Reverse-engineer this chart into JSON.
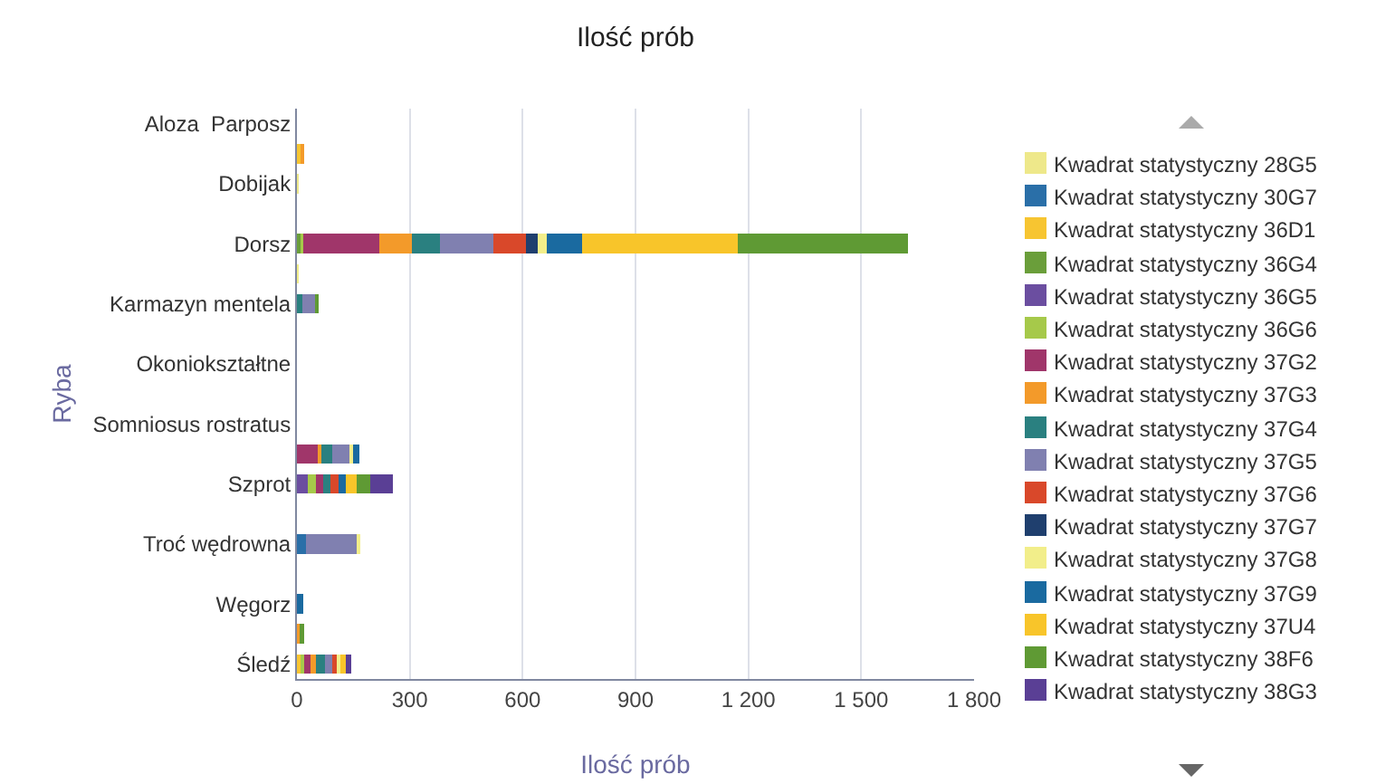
{
  "chart_data": {
    "type": "bar",
    "orientation": "horizontal",
    "stacked": true,
    "title": "Ilość prób",
    "xlabel": "Ilość prób",
    "ylabel": "Ryba",
    "categories": [
      "Aloza  Parposz",
      null,
      "Dobijak",
      null,
      "Dorsz",
      null,
      "Karmazyn mentela",
      null,
      "Okoniokształtne",
      null,
      "Somniosus rostratus",
      null,
      "Szprot",
      null,
      "Troć wędrowna",
      null,
      "Węgorz",
      null,
      "Śledź"
    ],
    "series": [
      {
        "name": "Kwadrat statystyczny 28G5",
        "color": "#eee88a",
        "values": [
          null,
          null,
          3,
          null,
          null,
          null,
          null,
          null,
          null,
          null,
          null,
          null,
          null,
          null,
          null,
          null,
          null,
          null,
          null
        ]
      },
      {
        "name": "Kwadrat statystyczny 30G7",
        "color": "#2a6fa8",
        "values": [
          null,
          null,
          null,
          null,
          null,
          null,
          null,
          null,
          null,
          null,
          null,
          null,
          null,
          null,
          25,
          null,
          null,
          null,
          null
        ]
      },
      {
        "name": "Kwadrat statystyczny 36D1",
        "color": "#f7c531",
        "values": [
          null,
          10,
          null,
          null,
          null,
          null,
          null,
          null,
          null,
          null,
          null,
          null,
          null,
          null,
          null,
          null,
          null,
          null,
          10
        ]
      },
      {
        "name": "Kwadrat statystyczny 36G4",
        "color": "#6a9e3a",
        "values": [
          null,
          null,
          null,
          null,
          10,
          null,
          null,
          null,
          null,
          null,
          null,
          null,
          null,
          null,
          null,
          null,
          null,
          null,
          null
        ]
      },
      {
        "name": "Kwadrat statystyczny 36G5",
        "color": "#6b4ea0",
        "values": [
          null,
          null,
          null,
          null,
          null,
          null,
          null,
          null,
          null,
          null,
          null,
          null,
          30,
          null,
          null,
          null,
          null,
          null,
          null
        ]
      },
      {
        "name": "Kwadrat statystyczny 36G6",
        "color": "#a6c94a",
        "values": [
          null,
          null,
          null,
          null,
          8,
          null,
          null,
          null,
          null,
          null,
          null,
          null,
          20,
          null,
          null,
          null,
          null,
          null,
          10
        ]
      },
      {
        "name": "Kwadrat statystyczny 37G2",
        "color": "#a0366a",
        "values": [
          null,
          null,
          null,
          null,
          200,
          null,
          null,
          null,
          null,
          null,
          null,
          55,
          20,
          null,
          null,
          null,
          null,
          null,
          15
        ]
      },
      {
        "name": "Kwadrat statystyczny 37G3",
        "color": "#f39a2a",
        "values": [
          null,
          5,
          null,
          null,
          88,
          null,
          null,
          null,
          null,
          null,
          null,
          10,
          null,
          null,
          null,
          null,
          null,
          8,
          15
        ]
      },
      {
        "name": "Kwadrat statystyczny 37G4",
        "color": "#2a8080",
        "values": [
          null,
          null,
          null,
          null,
          74,
          null,
          15,
          null,
          null,
          null,
          null,
          30,
          20,
          null,
          null,
          null,
          null,
          null,
          25
        ]
      },
      {
        "name": "Kwadrat statystyczny 37G5",
        "color": "#8080b0",
        "values": [
          null,
          null,
          null,
          null,
          142,
          null,
          35,
          null,
          null,
          null,
          null,
          45,
          null,
          null,
          135,
          null,
          null,
          null,
          20
        ]
      },
      {
        "name": "Kwadrat statystyczny 37G6",
        "color": "#d9482a",
        "values": [
          null,
          null,
          null,
          null,
          88,
          null,
          null,
          null,
          null,
          null,
          null,
          null,
          20,
          null,
          null,
          null,
          null,
          null,
          10
        ]
      },
      {
        "name": "Kwadrat statystyczny 37G7",
        "color": "#1f3f6e",
        "values": [
          null,
          null,
          null,
          null,
          30,
          null,
          null,
          null,
          null,
          null,
          null,
          null,
          null,
          null,
          null,
          null,
          null,
          null,
          null
        ]
      },
      {
        "name": "Kwadrat statystyczny 37G8",
        "color": "#f2ee8a",
        "values": [
          null,
          null,
          null,
          null,
          24,
          4,
          null,
          null,
          null,
          null,
          null,
          10,
          null,
          null,
          5,
          null,
          null,
          null,
          10
        ]
      },
      {
        "name": "Kwadrat statystyczny 37G9",
        "color": "#1a6aa0",
        "values": [
          null,
          null,
          null,
          null,
          93,
          null,
          null,
          null,
          null,
          null,
          null,
          15,
          20,
          null,
          null,
          null,
          18,
          null,
          null
        ]
      },
      {
        "name": "Kwadrat statystyczny 37U4",
        "color": "#f8c52a",
        "values": [
          null,
          null,
          null,
          null,
          415,
          null,
          null,
          null,
          null,
          null,
          null,
          null,
          30,
          null,
          null,
          null,
          null,
          null,
          15
        ]
      },
      {
        "name": "Kwadrat statystyczny 38F6",
        "color": "#5f9a34",
        "values": [
          null,
          null,
          null,
          null,
          453,
          null,
          5,
          null,
          null,
          null,
          null,
          null,
          35,
          null,
          null,
          null,
          null,
          12,
          null
        ]
      },
      {
        "name": "Kwadrat statystyczny 38G3",
        "color": "#5a3f95",
        "values": [
          null,
          null,
          null,
          null,
          null,
          null,
          null,
          null,
          null,
          null,
          null,
          null,
          60,
          null,
          null,
          null,
          null,
          null,
          15
        ]
      }
    ],
    "xlim": [
      0,
      1800
    ],
    "xticks": [
      0,
      300,
      600,
      900,
      {
        "value": 1200,
        "label": "1 200"
      },
      {
        "value": 1500,
        "label": "1 500"
      },
      {
        "value": 1800,
        "label": "1 800"
      }
    ],
    "grid": "x",
    "legend": "right"
  }
}
